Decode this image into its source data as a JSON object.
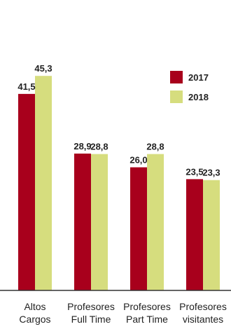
{
  "chart_data": {
    "type": "bar",
    "title": "",
    "xlabel": "",
    "ylabel": "",
    "categories": [
      [
        "Altos",
        "Cargos"
      ],
      [
        "Profesores",
        "Full Time"
      ],
      [
        "Profesores",
        "Part Time"
      ],
      [
        "Profesores",
        "visitantes"
      ]
    ],
    "series": [
      {
        "name": "2017",
        "color": "#a8001c",
        "values": [
          41.5,
          28.9,
          26.0,
          23.5
        ],
        "labels": [
          "41,5",
          "28,9",
          "26,0",
          "23,5"
        ]
      },
      {
        "name": "2018",
        "color": "#d6dd7e",
        "values": [
          45.3,
          28.8,
          28.8,
          23.3
        ],
        "labels": [
          "45,3",
          "28,8",
          "28,8",
          "23,3"
        ]
      }
    ],
    "ylim": [
      0,
      50
    ],
    "grid": false,
    "legend": "top-right",
    "axis_color": "#333333"
  }
}
